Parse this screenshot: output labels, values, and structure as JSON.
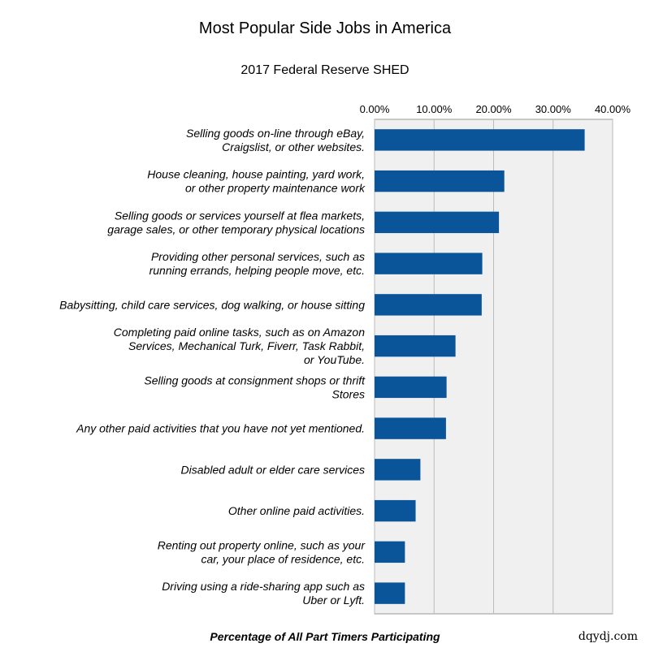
{
  "title": "Most Popular Side Jobs in America",
  "subtitle": "2017 Federal Reserve SHED",
  "credit": "dqydj.com",
  "colors": {
    "bar": "#0a5599",
    "plot_background": "#f0f0f0",
    "grid": "#bbbbbb"
  },
  "chart_data": {
    "type": "bar",
    "orientation": "horizontal",
    "title": "Most Popular Side Jobs in America",
    "subtitle": "2017 Federal Reserve SHED",
    "xlabel": "Percentage of All Part Timers Participating",
    "ylabel": "",
    "xlim": [
      0,
      0.4
    ],
    "x_axis_position": "top",
    "grid": true,
    "ticks": [
      "0.00%",
      "10.00%",
      "20.00%",
      "30.00%",
      "40.00%"
    ],
    "categories": [
      [
        "Selling goods on-line through eBay,",
        "Craigslist, or other websites."
      ],
      [
        "House cleaning, house painting, yard work,",
        "or other property maintenance work"
      ],
      [
        "Selling goods or services yourself at flea markets,",
        "garage sales, or other temporary physical locations"
      ],
      [
        "Providing other personal services, such as",
        "running errands, helping people move, etc."
      ],
      [
        "Babysitting, child care services, dog walking, or house sitting"
      ],
      [
        "Completing paid online tasks, such as on Amazon",
        "Services, Mechanical Turk, Fiverr, Task Rabbit,",
        "or YouTube."
      ],
      [
        "Selling goods at consignment shops or thrift",
        "Stores"
      ],
      [
        "Any other paid activities that you have not yet mentioned."
      ],
      [
        "Disabled adult or elder care services"
      ],
      [
        "Other online paid activities."
      ],
      [
        "Renting out property online, such as your",
        "car, your place of residence, etc."
      ],
      [
        "Driving using a ride-sharing app such as",
        "Uber or Lyft."
      ]
    ],
    "values": [
      0.353,
      0.218,
      0.209,
      0.181,
      0.18,
      0.136,
      0.121,
      0.12,
      0.077,
      0.069,
      0.051,
      0.051
    ]
  }
}
